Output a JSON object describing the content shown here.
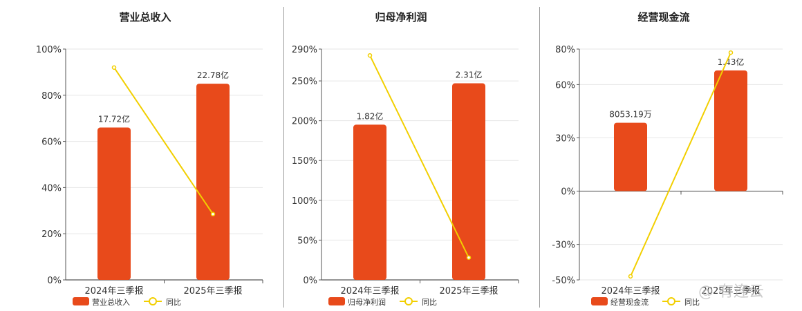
{
  "colors": {
    "bar": "#e84a1b",
    "line": "#f2cf00",
    "grid": "#e6e6e6",
    "axis": "#555555"
  },
  "watermark": "@ 有连云",
  "chart_data": [
    {
      "type": "bar",
      "title": "营业总收入",
      "categories": [
        "2024年三季报",
        "2025年三季报"
      ],
      "bar_values": [
        66,
        85
      ],
      "bar_labels": [
        "17.72亿",
        "22.78亿"
      ],
      "line_values": [
        92,
        28.5
      ],
      "ylim": [
        0,
        100
      ],
      "y_ticks": [
        0,
        20,
        40,
        60,
        80,
        100
      ],
      "y_tick_labels": [
        "0%",
        "20%",
        "40%",
        "60%",
        "80%",
        "100%"
      ],
      "series": [
        {
          "name": "营业总收入"
        },
        {
          "name": "同比"
        }
      ]
    },
    {
      "type": "bar",
      "title": "归母净利润",
      "categories": [
        "2024年三季报",
        "2025年三季报"
      ],
      "bar_values": [
        195,
        247
      ],
      "bar_labels": [
        "1.82亿",
        "2.31亿"
      ],
      "line_values": [
        282,
        28
      ],
      "ylim": [
        0,
        290
      ],
      "y_ticks": [
        0,
        50,
        100,
        150,
        200,
        250,
        290
      ],
      "y_tick_labels": [
        "0%",
        "50%",
        "100%",
        "150%",
        "200%",
        "250%",
        "290%"
      ],
      "series": [
        {
          "name": "归母净利润"
        },
        {
          "name": "同比"
        }
      ]
    },
    {
      "type": "bar",
      "title": "经营现金流",
      "categories": [
        "2024年三季报",
        "2025年三季报"
      ],
      "bar_values": [
        38.5,
        68
      ],
      "bar_labels": [
        "8053.19万",
        "1.43亿"
      ],
      "line_values": [
        -48,
        78
      ],
      "ylim": [
        -50,
        80
      ],
      "y_ticks": [
        -50,
        -30,
        0,
        30,
        60,
        80
      ],
      "y_tick_labels": [
        "-50%",
        "-30%",
        "0%",
        "30%",
        "60%",
        "80%"
      ],
      "series": [
        {
          "name": "经营现金流"
        },
        {
          "name": "同比"
        }
      ]
    }
  ]
}
